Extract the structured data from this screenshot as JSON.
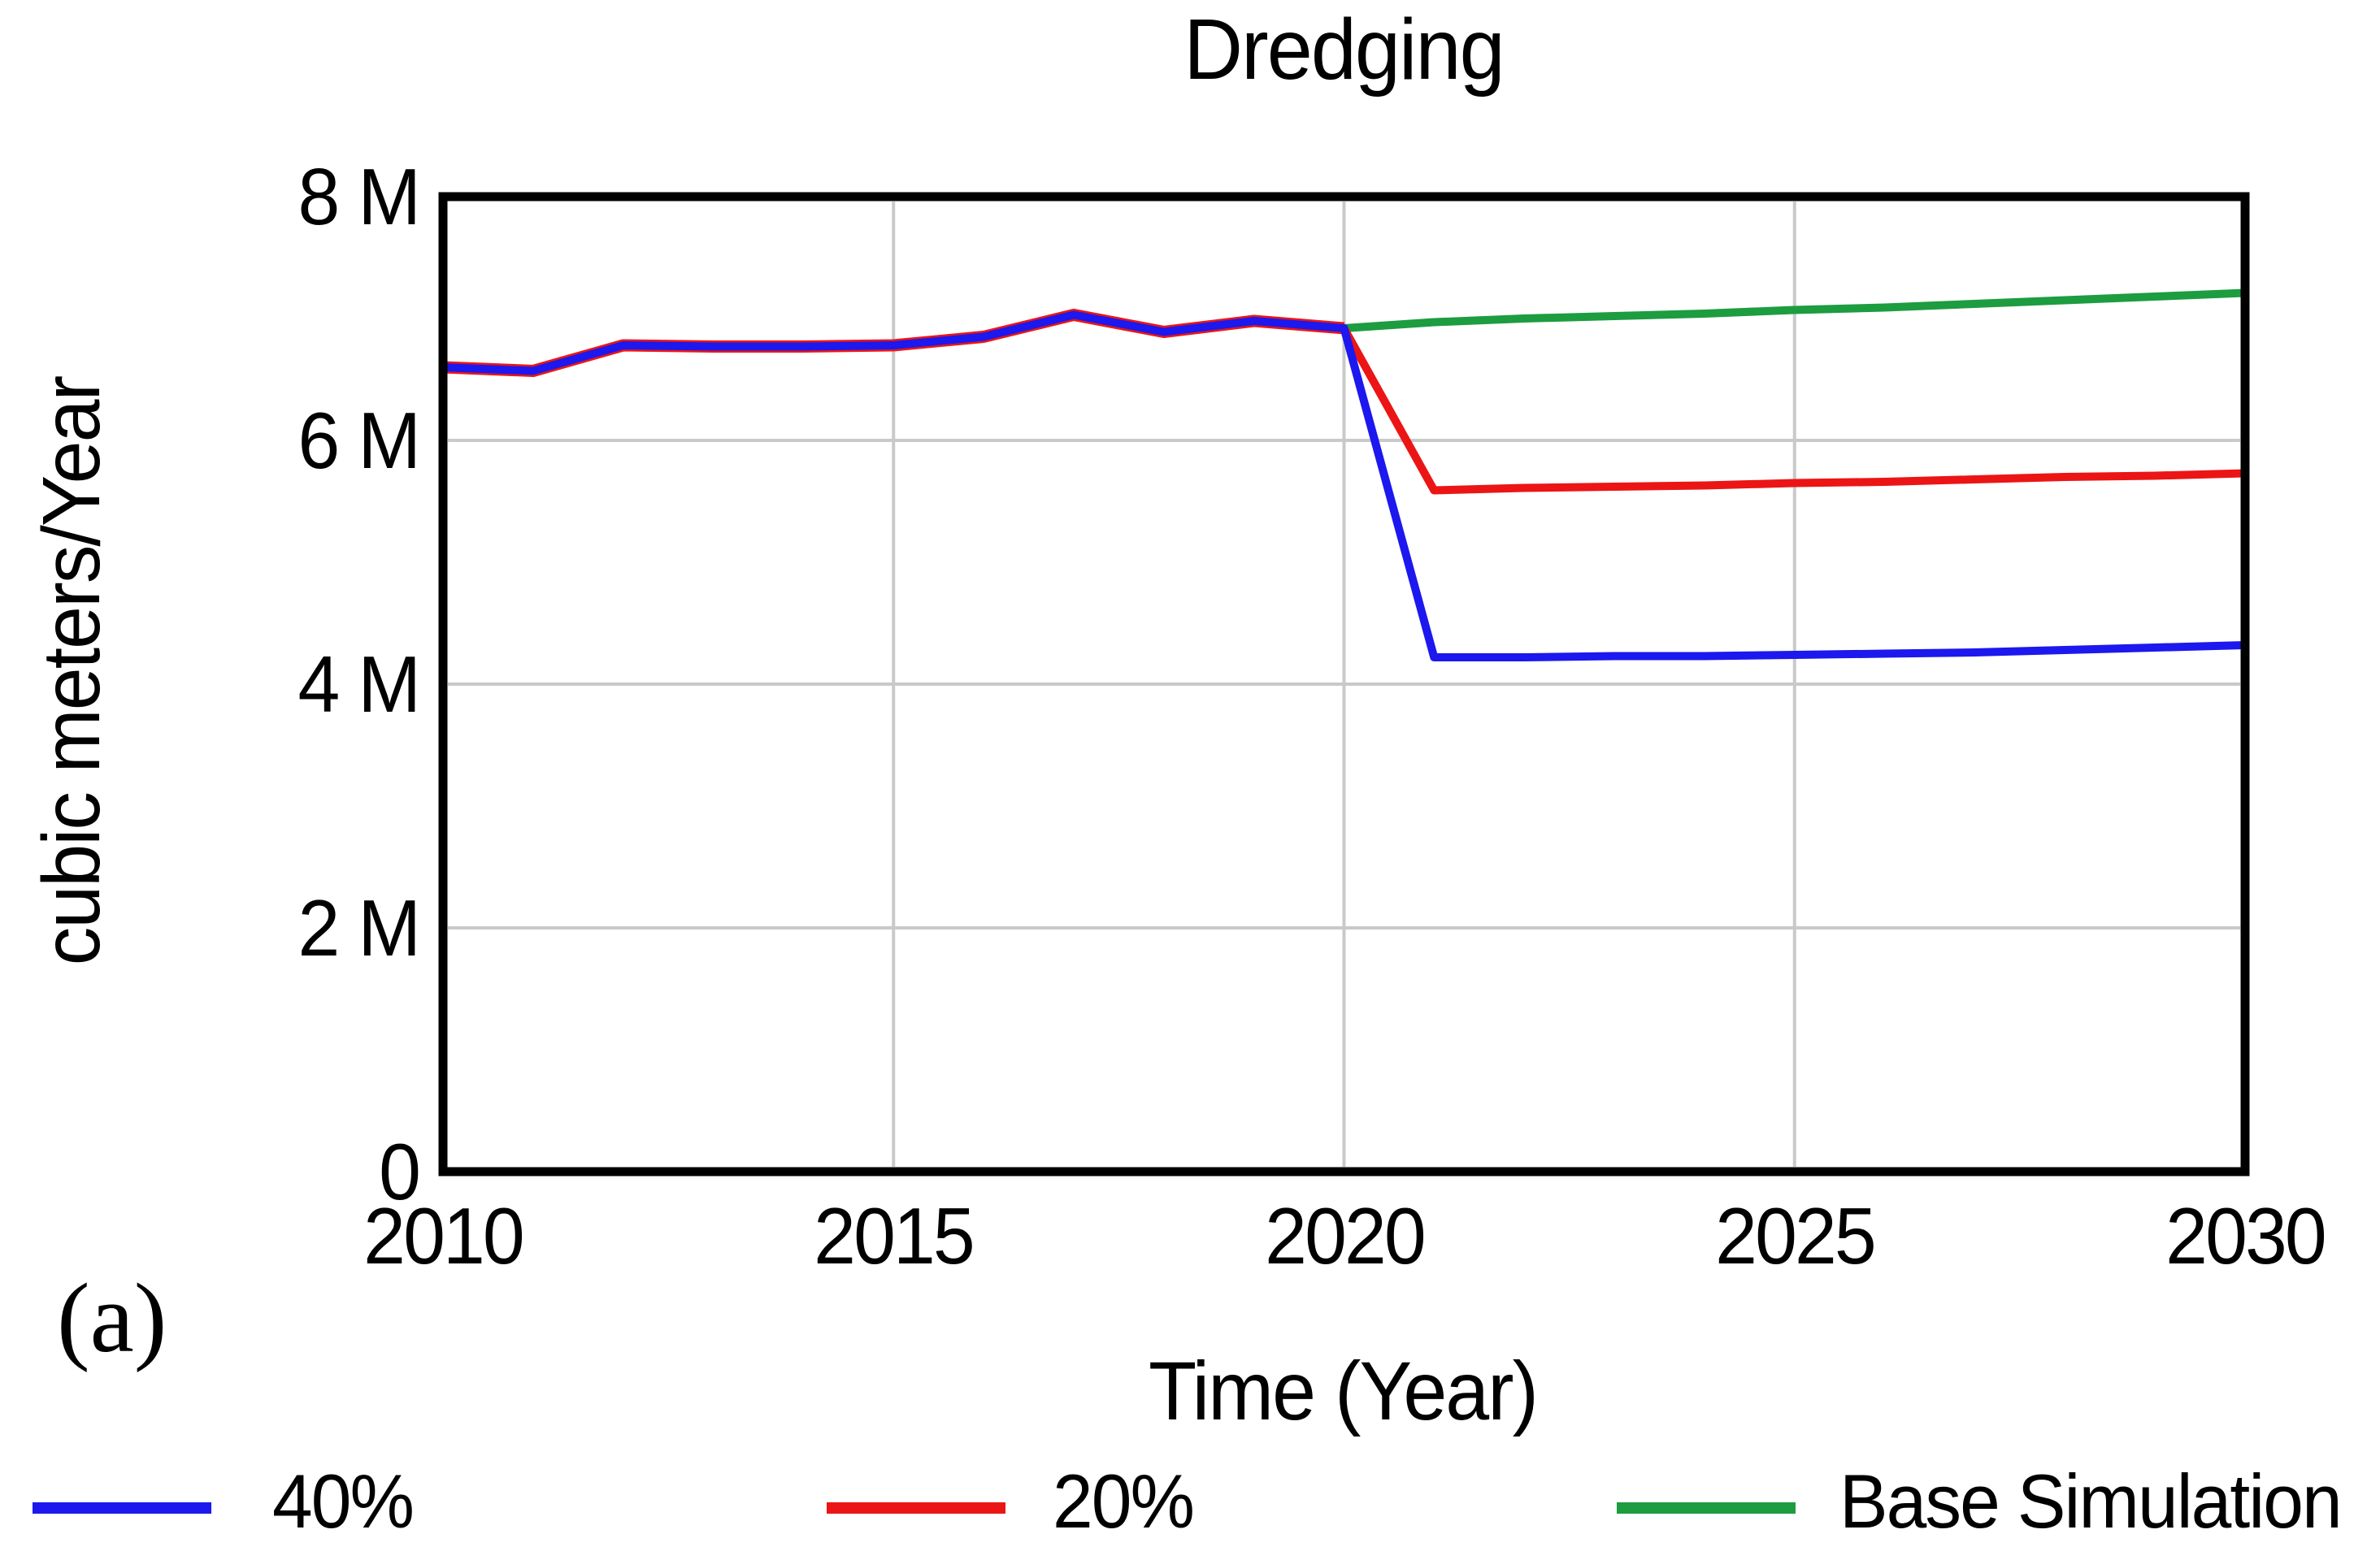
{
  "page": {
    "panel_label": "(a)"
  },
  "chart": {
    "title": "Dredging",
    "x_axis": {
      "title": "Time (Year)"
    },
    "y_axis": {
      "title": "cubic meters/Year"
    },
    "legend": [
      {
        "label": "40%",
        "color": "#1c18ee"
      },
      {
        "label": "20%",
        "color": "#ec1515"
      },
      {
        "label": "Base Simulation",
        "color": "#1d9c40"
      }
    ]
  },
  "chart_data": {
    "type": "line",
    "title": "Dredging",
    "xlabel": "Time (Year)",
    "ylabel": "cubic meters/Year",
    "xlim": [
      2010,
      2030
    ],
    "ylim": [
      0,
      8000000
    ],
    "x_tick_values": [
      2010,
      2015,
      2020,
      2025,
      2030
    ],
    "x_tick_labels": [
      "2010",
      "2015",
      "2020",
      "2025",
      "2030"
    ],
    "y_tick_values": [
      0,
      2000000,
      4000000,
      6000000,
      8000000
    ],
    "y_tick_labels": [
      "0",
      "2 M",
      "4 M",
      "6 M",
      "8 M"
    ],
    "grid_x_values": [
      2015,
      2020,
      2025
    ],
    "grid_y_values": [
      2000000,
      4000000,
      6000000
    ],
    "grid": true,
    "legend_position": "bottom",
    "frame_color": "#000000",
    "grid_color": "#c9c9c9",
    "scenario_split_year": 2021,
    "x": [
      2010,
      2011,
      2012,
      2013,
      2014,
      2015,
      2016,
      2017,
      2018,
      2019,
      2020,
      2021,
      2022,
      2023,
      2024,
      2025,
      2026,
      2027,
      2028,
      2029,
      2030
    ],
    "series": [
      {
        "name": "40%",
        "color": "#1c18ee",
        "values": [
          6600000,
          6570000,
          6780000,
          6770000,
          6770000,
          6780000,
          6850000,
          7030000,
          6890000,
          6980000,
          6920000,
          4220000,
          4220000,
          4230000,
          4230000,
          4240000,
          4250000,
          4260000,
          4280000,
          4300000,
          4320000
        ]
      },
      {
        "name": "20%",
        "color": "#ec1515",
        "values": [
          6600000,
          6570000,
          6780000,
          6770000,
          6770000,
          6780000,
          6850000,
          7030000,
          6890000,
          6980000,
          6920000,
          5590000,
          5610000,
          5620000,
          5630000,
          5650000,
          5660000,
          5680000,
          5700000,
          5710000,
          5730000
        ]
      },
      {
        "name": "Base Simulation",
        "color": "#1d9c40",
        "values": [
          6600000,
          6570000,
          6780000,
          6770000,
          6770000,
          6780000,
          6850000,
          7030000,
          6890000,
          6980000,
          6920000,
          6970000,
          7000000,
          7020000,
          7040000,
          7070000,
          7090000,
          7120000,
          7150000,
          7180000,
          7210000
        ]
      }
    ]
  }
}
